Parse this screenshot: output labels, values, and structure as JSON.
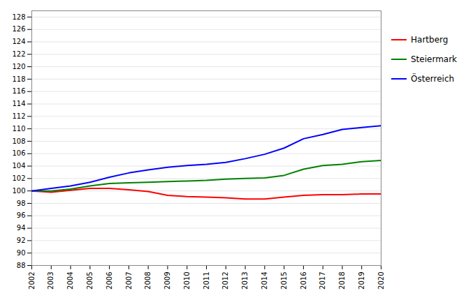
{
  "chart_data": {
    "type": "line",
    "x": [
      2002,
      2003,
      2004,
      2005,
      2006,
      2007,
      2008,
      2009,
      2010,
      2011,
      2012,
      2013,
      2014,
      2015,
      2016,
      2017,
      2018,
      2019,
      2020
    ],
    "series": [
      {
        "name": "Hartberg",
        "color": "#ff0000",
        "values": [
          100.0,
          99.8,
          100.1,
          100.4,
          100.4,
          100.2,
          99.9,
          99.3,
          99.1,
          99.0,
          98.9,
          98.7,
          98.7,
          99.0,
          99.3,
          99.4,
          99.4,
          99.5,
          99.5
        ]
      },
      {
        "name": "Steiermark",
        "color": "#008000",
        "values": [
          100.0,
          100.0,
          100.3,
          100.8,
          101.2,
          101.3,
          101.4,
          101.5,
          101.6,
          101.7,
          101.9,
          102.0,
          102.1,
          102.5,
          103.5,
          104.1,
          104.3,
          104.7,
          104.9
        ]
      },
      {
        "name": "Österreich",
        "color": "#0000ff",
        "values": [
          100.0,
          100.4,
          100.8,
          101.4,
          102.2,
          102.9,
          103.4,
          103.8,
          104.1,
          104.3,
          104.6,
          105.2,
          105.9,
          106.9,
          108.4,
          109.1,
          109.9,
          110.2,
          110.5
        ]
      }
    ],
    "xlim": [
      2002,
      2020
    ],
    "xticks": [
      2002,
      2003,
      2004,
      2005,
      2006,
      2007,
      2008,
      2009,
      2010,
      2011,
      2012,
      2013,
      2014,
      2015,
      2016,
      2017,
      2018,
      2019,
      2020
    ],
    "ylim": [
      88,
      129
    ],
    "yticks": [
      88,
      90,
      92,
      94,
      96,
      98,
      100,
      102,
      104,
      106,
      108,
      110,
      112,
      114,
      116,
      118,
      120,
      122,
      124,
      126,
      128
    ],
    "grid": true,
    "legend": "right"
  }
}
